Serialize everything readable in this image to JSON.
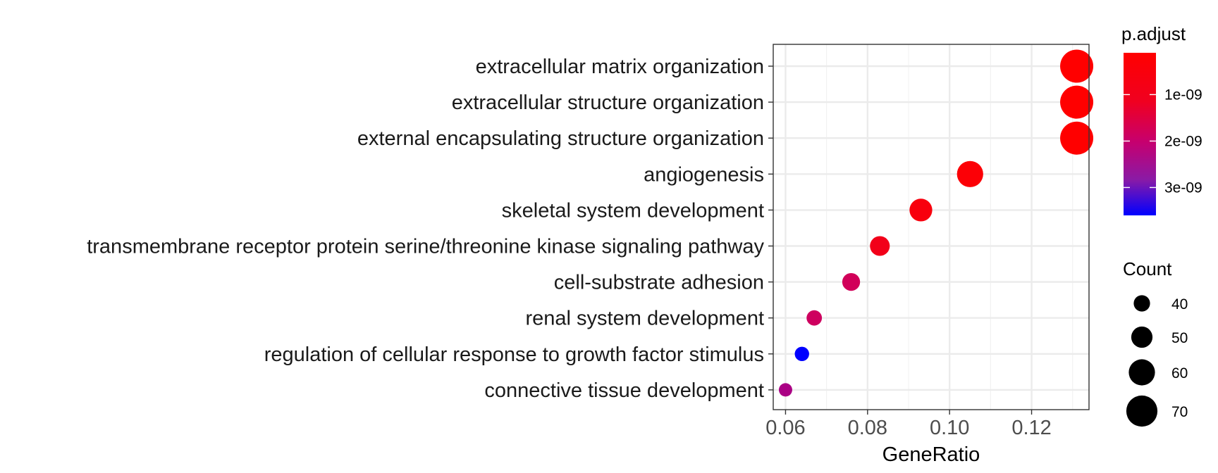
{
  "chart_data": {
    "type": "scatter",
    "xlabel": "GeneRatio",
    "ylabel": "",
    "xlim": [
      0.057,
      0.134
    ],
    "x_ticks": [
      0.06,
      0.08,
      0.1,
      0.12
    ],
    "x_tick_labels": [
      "0.06",
      "0.08",
      "0.10",
      "0.12"
    ],
    "grid": true,
    "categories": [
      "extracellular matrix organization",
      "extracellular structure organization",
      "external encapsulating structure organization",
      "angiogenesis",
      "skeletal system development",
      "transmembrane receptor protein serine/threonine kinase signaling pathway",
      "cell-substrate adhesion",
      "renal system development",
      "regulation of cellular response to growth factor stimulus",
      "connective tissue development"
    ],
    "points": [
      {
        "category": "extracellular matrix organization",
        "gene_ratio": 0.131,
        "count": 74,
        "p_adjust": 1e-10
      },
      {
        "category": "extracellular structure organization",
        "gene_ratio": 0.131,
        "count": 74,
        "p_adjust": 1e-10
      },
      {
        "category": "external encapsulating structure organization",
        "gene_ratio": 0.131,
        "count": 74,
        "p_adjust": 1e-10
      },
      {
        "category": "angiogenesis",
        "gene_ratio": 0.105,
        "count": 60,
        "p_adjust": 2e-10
      },
      {
        "category": "skeletal system development",
        "gene_ratio": 0.093,
        "count": 53,
        "p_adjust": 3e-10
      },
      {
        "category": "transmembrane receptor protein serine/threonine kinase signaling pathway",
        "gene_ratio": 0.083,
        "count": 47,
        "p_adjust": 5e-10
      },
      {
        "category": "cell-substrate adhesion",
        "gene_ratio": 0.076,
        "count": 43,
        "p_adjust": 1.5e-09
      },
      {
        "category": "renal system development",
        "gene_ratio": 0.067,
        "count": 38,
        "p_adjust": 1.6e-09
      },
      {
        "category": "regulation of cellular response to growth factor stimulus",
        "gene_ratio": 0.064,
        "count": 36,
        "p_adjust": 3.6e-09
      },
      {
        "category": "connective tissue development",
        "gene_ratio": 0.06,
        "count": 34,
        "p_adjust": 2.1e-09
      }
    ],
    "color_legend": {
      "title": "p.adjust",
      "range": [
        1e-10,
        3.6e-09
      ],
      "colors": {
        "low": "#ff0000",
        "mid": "#c6006f",
        "high": "#0000ff"
      },
      "breaks": [
        1e-09,
        2e-09,
        3e-09
      ],
      "labels": [
        "1e-09",
        "2e-09",
        "3e-09"
      ]
    },
    "size_legend": {
      "title": "Count",
      "values": [
        40,
        50,
        60,
        70
      ],
      "labels": [
        "40",
        "50",
        "60",
        "70"
      ]
    }
  }
}
